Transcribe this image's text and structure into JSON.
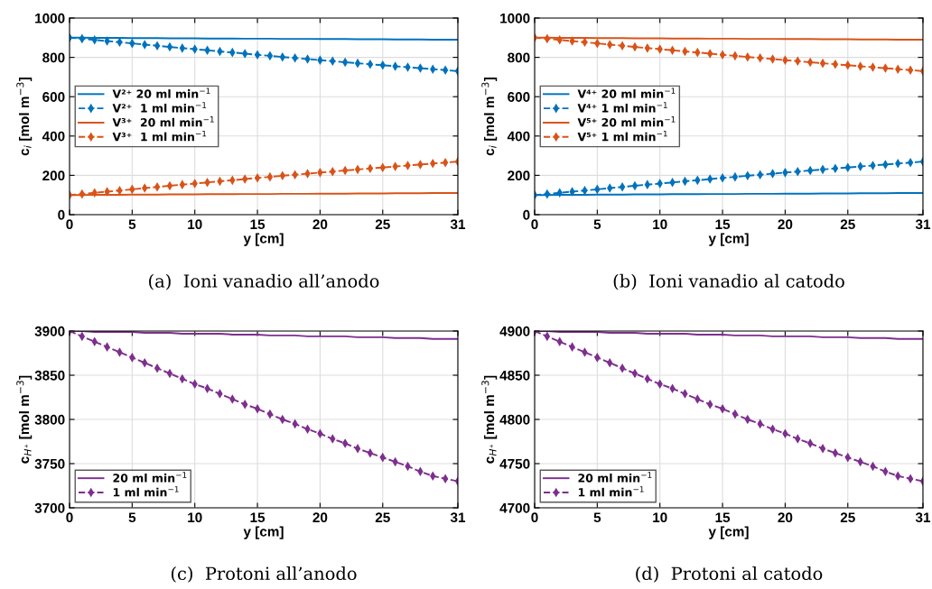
{
  "chart_data": [
    {
      "type": "line",
      "xlabel": "y [cm]",
      "ylabel": "c$_{i}$ [mol m$^{−3}$]",
      "annotations": [
        "(a)  Ioni vanadio all’anodo"
      ],
      "x": [
        0,
        1,
        2,
        3,
        4,
        5,
        6,
        7,
        8,
        9,
        10,
        11,
        12,
        13,
        14,
        15,
        16,
        17,
        18,
        19,
        20,
        21,
        22,
        23,
        24,
        25,
        26,
        27,
        28,
        29,
        30,
        31
      ],
      "xlim": [
        0,
        31
      ],
      "xticks": [
        0,
        5,
        10,
        15,
        20,
        25,
        31
      ],
      "ylim": [
        0,
        1000
      ],
      "yticks": [
        0,
        200,
        400,
        600,
        800,
        1000
      ],
      "grid": true,
      "legend": "left",
      "series": [
        {
          "name": "V²⁺ 20 ml min$^{−1}$",
          "color": "#0072bd",
          "values": [
            900,
            900,
            899,
            899,
            899,
            898,
            898,
            898,
            897,
            897,
            897,
            896,
            896,
            896,
            895,
            895,
            895,
            894,
            894,
            894,
            893,
            893,
            893,
            892,
            892,
            892,
            891,
            891,
            891,
            890,
            890,
            890
          ],
          "marker": "none",
          "line_style": "solid"
        },
        {
          "name": "V²⁺  1 ml min$^{−1}$",
          "color": "#0072bd",
          "marker": "diamond",
          "line_style": "dashed",
          "values": [
            900,
            895,
            889,
            883,
            877,
            871,
            865,
            859,
            853,
            847,
            842,
            836,
            830,
            825,
            819,
            813,
            808,
            802,
            797,
            791,
            786,
            781,
            775,
            770,
            765,
            760,
            755,
            750,
            745,
            740,
            735,
            730
          ]
        },
        {
          "name": "V³⁺  20 ml min$^{−1}$",
          "color": "#d95319",
          "values": [
            100,
            100,
            101,
            101,
            101,
            102,
            102,
            102,
            103,
            103,
            103,
            104,
            104,
            104,
            105,
            105,
            105,
            106,
            106,
            106,
            107,
            107,
            107,
            108,
            108,
            108,
            109,
            109,
            109,
            110,
            110,
            110
          ],
          "marker": "none",
          "line_style": "solid"
        },
        {
          "name": "V³⁺  1 ml min$^{−1}$",
          "color": "#d95319",
          "marker": "diamond",
          "line_style": "dashed",
          "values": [
            100,
            105,
            111,
            117,
            123,
            129,
            135,
            141,
            147,
            153,
            158,
            164,
            170,
            175,
            181,
            187,
            192,
            198,
            203,
            209,
            214,
            219,
            225,
            230,
            235,
            240,
            245,
            250,
            255,
            260,
            265,
            270
          ]
        }
      ]
    },
    {
      "type": "line",
      "xlabel": "y [cm]",
      "ylabel": "c$_{i}$ [mol m$^{−3}$]",
      "annotations": [
        "(b)  Ioni vanadio al catodo"
      ],
      "x": [
        0,
        1,
        2,
        3,
        4,
        5,
        6,
        7,
        8,
        9,
        10,
        11,
        12,
        13,
        14,
        15,
        16,
        17,
        18,
        19,
        20,
        21,
        22,
        23,
        24,
        25,
        26,
        27,
        28,
        29,
        30,
        31
      ],
      "xlim": [
        0,
        31
      ],
      "xticks": [
        0,
        5,
        10,
        15,
        20,
        25,
        31
      ],
      "ylim": [
        0,
        1000
      ],
      "yticks": [
        0,
        200,
        400,
        600,
        800,
        1000
      ],
      "grid": true,
      "legend": "left",
      "series": [
        {
          "name": "V⁴⁺ 20 ml min$^{−1}$",
          "color": "#0072bd",
          "values": [
            100,
            100,
            101,
            101,
            101,
            102,
            102,
            102,
            103,
            103,
            103,
            104,
            104,
            104,
            105,
            105,
            105,
            106,
            106,
            106,
            107,
            107,
            107,
            108,
            108,
            108,
            109,
            109,
            109,
            110,
            110,
            110
          ],
          "marker": "none",
          "line_style": "solid"
        },
        {
          "name": "V⁴⁺ 1 ml min$^{−1}$",
          "color": "#0072bd",
          "marker": "diamond",
          "line_style": "dashed",
          "values": [
            100,
            105,
            111,
            117,
            123,
            129,
            135,
            141,
            147,
            153,
            158,
            164,
            170,
            175,
            181,
            187,
            192,
            198,
            203,
            209,
            214,
            219,
            225,
            230,
            235,
            240,
            245,
            250,
            255,
            260,
            265,
            270
          ]
        },
        {
          "name": "V⁵⁺ 20 ml min$^{−1}$",
          "color": "#d95319",
          "values": [
            900,
            900,
            899,
            899,
            899,
            898,
            898,
            898,
            897,
            897,
            897,
            896,
            896,
            896,
            895,
            895,
            895,
            894,
            894,
            894,
            893,
            893,
            893,
            892,
            892,
            892,
            891,
            891,
            891,
            890,
            890,
            890
          ],
          "marker": "none",
          "line_style": "solid"
        },
        {
          "name": "V⁵⁺ 1 ml min$^{−1}$",
          "color": "#d95319",
          "marker": "diamond",
          "line_style": "dashed",
          "values": [
            900,
            895,
            889,
            883,
            877,
            871,
            865,
            859,
            853,
            847,
            842,
            836,
            830,
            825,
            819,
            813,
            808,
            802,
            797,
            791,
            786,
            781,
            775,
            770,
            765,
            760,
            755,
            750,
            745,
            740,
            735,
            730
          ]
        }
      ]
    },
    {
      "type": "line",
      "xlabel": "y [cm]",
      "ylabel": "c$_{H⁺}$ [mol m$^{−3}$]",
      "annotations": [
        "(c)  Protoni all’anodo"
      ],
      "x": [
        0,
        1,
        2,
        3,
        4,
        5,
        6,
        7,
        8,
        9,
        10,
        11,
        12,
        13,
        14,
        15,
        16,
        17,
        18,
        19,
        20,
        21,
        22,
        23,
        24,
        25,
        26,
        27,
        28,
        29,
        30,
        31
      ],
      "xlim": [
        0,
        31
      ],
      "xticks": [
        0,
        5,
        10,
        15,
        20,
        25,
        31
      ],
      "ylim": [
        3700,
        3900
      ],
      "yticks": [
        3700,
        3750,
        3800,
        3850,
        3900
      ],
      "grid": true,
      "legend": "lower left",
      "series": [
        {
          "name": "20 ml min$^{−1}$",
          "color": "#7e2f8e",
          "values": [
            3900,
            3900,
            3899,
            3899,
            3899,
            3899,
            3898,
            3898,
            3898,
            3897,
            3897,
            3897,
            3897,
            3896,
            3896,
            3896,
            3895,
            3895,
            3895,
            3894,
            3894,
            3894,
            3894,
            3893,
            3893,
            3893,
            3892,
            3892,
            3892,
            3891,
            3891,
            3891
          ],
          "marker": "none",
          "line_style": "solid"
        },
        {
          "name": "1 ml min$^{−1}$",
          "color": "#7e2f8e",
          "marker": "diamond",
          "line_style": "dashed",
          "values": [
            3900,
            3894,
            3888,
            3882,
            3876,
            3870,
            3864,
            3858,
            3852,
            3846,
            3840,
            3835,
            3829,
            3823,
            3817,
            3812,
            3806,
            3800,
            3795,
            3789,
            3784,
            3778,
            3773,
            3767,
            3762,
            3757,
            3752,
            3747,
            3741,
            3736,
            3733,
            3730
          ]
        }
      ]
    },
    {
      "type": "line",
      "xlabel": "y [cm]",
      "ylabel": "c$_{H⁺}$ [mol m$^{−3}$]",
      "annotations": [
        "(d)  Protoni al catodo"
      ],
      "x": [
        0,
        1,
        2,
        3,
        4,
        5,
        6,
        7,
        8,
        9,
        10,
        11,
        12,
        13,
        14,
        15,
        16,
        17,
        18,
        19,
        20,
        21,
        22,
        23,
        24,
        25,
        26,
        27,
        28,
        29,
        30,
        31
      ],
      "xlim": [
        0,
        31
      ],
      "xticks": [
        0,
        5,
        10,
        15,
        20,
        25,
        31
      ],
      "ylim": [
        4700,
        4900
      ],
      "yticks": [
        4700,
        4750,
        4800,
        4850,
        4900
      ],
      "grid": true,
      "legend": "lower left",
      "series": [
        {
          "name": "20 ml min$^{−1}$",
          "color": "#7e2f8e",
          "values": [
            4900,
            4900,
            4899,
            4899,
            4899,
            4899,
            4898,
            4898,
            4898,
            4897,
            4897,
            4897,
            4897,
            4896,
            4896,
            4896,
            4895,
            4895,
            4895,
            4894,
            4894,
            4894,
            4894,
            4893,
            4893,
            4893,
            4892,
            4892,
            4892,
            4891,
            4891,
            4891
          ],
          "marker": "none",
          "line_style": "solid"
        },
        {
          "name": "1 ml min$^{−1}$",
          "color": "#7e2f8e",
          "marker": "diamond",
          "line_style": "dashed",
          "values": [
            4900,
            4894,
            4888,
            4882,
            4876,
            4870,
            4864,
            4858,
            4852,
            4846,
            4840,
            4835,
            4829,
            4823,
            4817,
            4812,
            4806,
            4800,
            4795,
            4789,
            4784,
            4778,
            4773,
            4767,
            4762,
            4757,
            4752,
            4747,
            4741,
            4736,
            4733,
            4730
          ]
        }
      ]
    }
  ]
}
